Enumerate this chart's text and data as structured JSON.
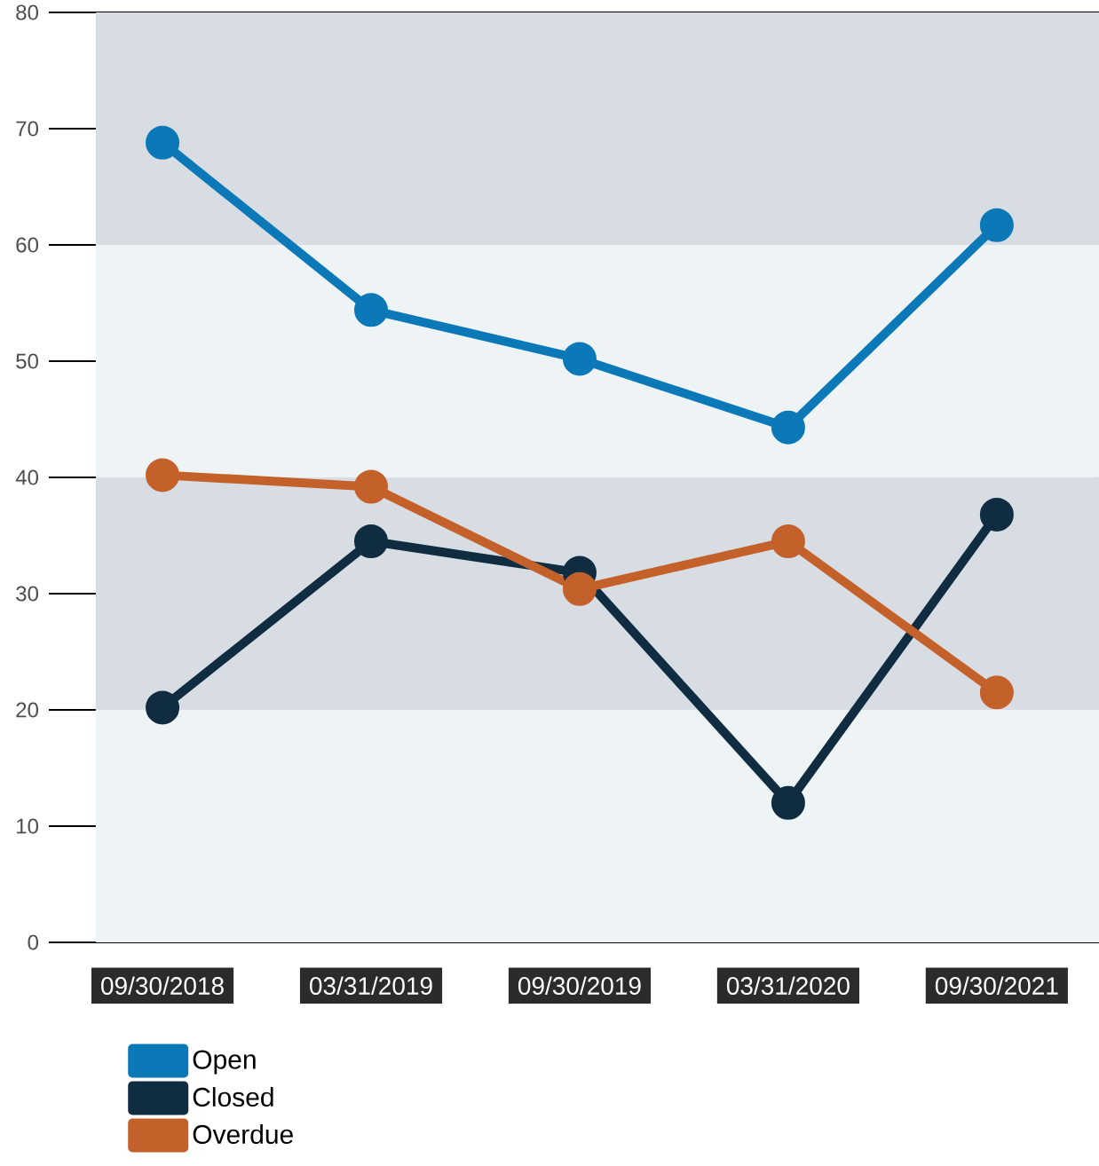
{
  "chart_data": {
    "type": "line",
    "categories": [
      "09/30/2018",
      "03/31/2019",
      "09/30/2019",
      "03/31/2020",
      "09/30/2021"
    ],
    "series": [
      {
        "name": "Open",
        "color": "#0b78b8",
        "values": [
          68.8,
          54.4,
          50.2,
          44.3,
          61.7
        ]
      },
      {
        "name": "Closed",
        "color": "#102c40",
        "values": [
          20.2,
          34.5,
          31.8,
          12.0,
          36.8
        ]
      },
      {
        "name": "Overdue",
        "color": "#c4612b",
        "values": [
          40.2,
          39.2,
          30.4,
          34.5,
          21.5
        ]
      }
    ],
    "ylim": [
      0,
      80
    ],
    "yticks": [
      0,
      10,
      20,
      30,
      40,
      50,
      60,
      70,
      80
    ],
    "grid": "y",
    "legend": "bottom left",
    "marker": "circle",
    "line_style": "solid",
    "bands": [
      {
        "axis": "y",
        "from": 0,
        "to": 20,
        "color": "#eef3f6"
      },
      {
        "axis": "y",
        "from": 20,
        "to": 40,
        "color": "#d8dde3"
      },
      {
        "axis": "y",
        "from": 40,
        "to": 60,
        "color": "#eef3f6"
      },
      {
        "axis": "y",
        "from": 60,
        "to": 80,
        "color": "#d8dde3"
      }
    ]
  }
}
